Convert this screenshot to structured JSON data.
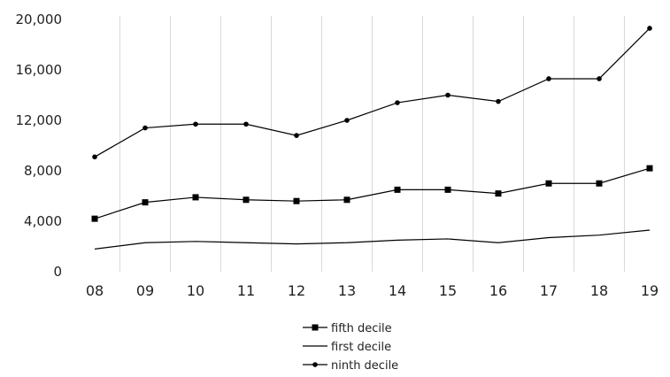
{
  "chart_data": {
    "type": "line",
    "x": [
      "08",
      "09",
      "10",
      "11",
      "12",
      "13",
      "14",
      "15",
      "16",
      "17",
      "18",
      "19"
    ],
    "ylim": [
      0,
      20000
    ],
    "yticks": [
      "0",
      "4,000",
      "8,000",
      "12,000",
      "16,000",
      "20,000"
    ],
    "ytick_values": [
      0,
      4000,
      8000,
      12000,
      16000,
      20000
    ],
    "grid": "vertical",
    "legend_position": "bottom",
    "series": [
      {
        "name": "fifth decile",
        "marker": "square",
        "color": "#000000",
        "values": [
          4200,
          5500,
          5900,
          5700,
          5600,
          5700,
          6500,
          6500,
          6200,
          7000,
          7000,
          8200
        ]
      },
      {
        "name": "first decile",
        "marker": "none",
        "color": "#000000",
        "values": [
          1800,
          2300,
          2400,
          2300,
          2200,
          2300,
          2500,
          2600,
          2300,
          2700,
          2900,
          3300
        ]
      },
      {
        "name": "ninth decile",
        "marker": "circle",
        "color": "#000000",
        "values": [
          9100,
          11400,
          11700,
          11700,
          10800,
          12000,
          13400,
          14000,
          13500,
          15300,
          15300,
          19300
        ]
      }
    ]
  }
}
